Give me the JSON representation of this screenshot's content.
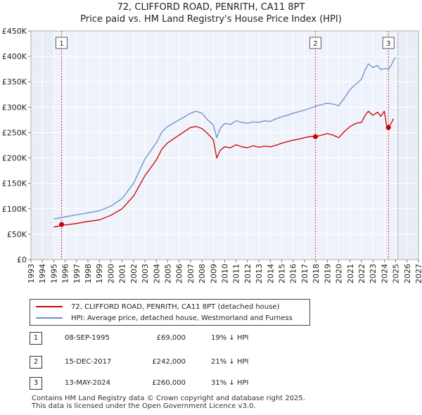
{
  "chart_data": {
    "type": "line",
    "title": "72, CLIFFORD ROAD, PENRITH, CA11 8PT",
    "subtitle": "Price paid vs. HM Land Registry's House Price Index (HPI)",
    "xlim": [
      1993,
      2027
    ],
    "ylim": [
      0,
      450000
    ],
    "xticks": [
      "1993",
      "1994",
      "1995",
      "1996",
      "1997",
      "1998",
      "1999",
      "2000",
      "2001",
      "2002",
      "2003",
      "2004",
      "2005",
      "2006",
      "2007",
      "2008",
      "2009",
      "2010",
      "2011",
      "2012",
      "2013",
      "2014",
      "2015",
      "2016",
      "2017",
      "2018",
      "2019",
      "2020",
      "2021",
      "2022",
      "2023",
      "2024",
      "2025",
      "2026",
      "2027"
    ],
    "yticks": [
      {
        "value": 0,
        "label": "£0"
      },
      {
        "value": 50000,
        "label": "£50K"
      },
      {
        "value": 100000,
        "label": "£100K"
      },
      {
        "value": 150000,
        "label": "£150K"
      },
      {
        "value": 200000,
        "label": "£200K"
      },
      {
        "value": 250000,
        "label": "£250K"
      },
      {
        "value": 300000,
        "label": "£300K"
      },
      {
        "value": 350000,
        "label": "£350K"
      },
      {
        "value": 400000,
        "label": "£400K"
      },
      {
        "value": 450000,
        "label": "£450K"
      }
    ],
    "grid": true,
    "hatched_ranges": [
      [
        1993,
        1995.0
      ],
      [
        2025.2,
        2027
      ]
    ],
    "series": [
      {
        "name": "72, CLIFFORD ROAD, PENRITH, CA11 8PT (detached house)",
        "color": "#cc0000",
        "x": [
          1995.0,
          1995.5,
          1995.69,
          1996.0,
          1997.0,
          1998.0,
          1999.0,
          2000.0,
          2001.0,
          2002.0,
          2003.0,
          2004.0,
          2004.5,
          2005.0,
          2006.0,
          2007.0,
          2007.5,
          2008.0,
          2008.5,
          2009.0,
          2009.3,
          2009.6,
          2010.0,
          2010.5,
          2011.0,
          2011.5,
          2012.0,
          2012.5,
          2013.0,
          2013.5,
          2014.0,
          2014.5,
          2015.0,
          2015.5,
          2016.0,
          2016.5,
          2017.0,
          2017.5,
          2017.96,
          2018.5,
          2019.0,
          2019.5,
          2020.0,
          2020.5,
          2021.0,
          2021.5,
          2022.0,
          2022.3,
          2022.6,
          2023.0,
          2023.4,
          2023.7,
          2024.0,
          2024.2,
          2024.36,
          2024.6,
          2024.8
        ],
        "values": [
          64000,
          66000,
          69000,
          68000,
          71000,
          75000,
          78000,
          87000,
          100000,
          125000,
          165000,
          196000,
          218000,
          230000,
          245000,
          260000,
          262000,
          258000,
          248000,
          236000,
          200000,
          215000,
          222000,
          220000,
          226000,
          222000,
          220000,
          224000,
          221000,
          223000,
          222000,
          225000,
          229000,
          232000,
          235000,
          237000,
          240000,
          242000,
          242000,
          245000,
          248000,
          245000,
          240000,
          252000,
          262000,
          268000,
          270000,
          283000,
          292000,
          284000,
          290000,
          282000,
          292000,
          265000,
          260000,
          268000,
          277000
        ]
      },
      {
        "name": "HPI: Average price, detached house, Westmorland and Furness",
        "color": "#6a8fcc",
        "x": [
          1995.0,
          1995.5,
          1996.0,
          1997.0,
          1998.0,
          1999.0,
          2000.0,
          2001.0,
          2002.0,
          2003.0,
          2004.0,
          2004.5,
          2005.0,
          2006.0,
          2007.0,
          2007.5,
          2008.0,
          2008.5,
          2009.0,
          2009.3,
          2009.6,
          2010.0,
          2010.5,
          2011.0,
          2011.5,
          2012.0,
          2012.5,
          2013.0,
          2013.5,
          2014.0,
          2014.5,
          2015.0,
          2015.5,
          2016.0,
          2016.5,
          2017.0,
          2017.5,
          2018.0,
          2018.5,
          2019.0,
          2019.5,
          2020.0,
          2020.5,
          2021.0,
          2021.5,
          2022.0,
          2022.3,
          2022.6,
          2023.0,
          2023.4,
          2023.7,
          2024.0,
          2024.36,
          2024.6,
          2024.8,
          2025.0
        ],
        "values": [
          80000,
          82000,
          84000,
          88000,
          92000,
          96000,
          105000,
          120000,
          150000,
          198000,
          230000,
          252000,
          262000,
          275000,
          288000,
          292000,
          288000,
          275000,
          265000,
          240000,
          258000,
          268000,
          266000,
          273000,
          270000,
          268000,
          271000,
          270000,
          273000,
          272000,
          277000,
          281000,
          284000,
          288000,
          291000,
          294000,
          298000,
          302000,
          305000,
          308000,
          306000,
          303000,
          318000,
          335000,
          345000,
          355000,
          372000,
          385000,
          378000,
          382000,
          374000,
          376000,
          375000,
          382000,
          392000,
          398000
        ]
      }
    ],
    "markers": [
      {
        "label": "1",
        "x": 1995.69,
        "value": 69000
      },
      {
        "label": "2",
        "x": 2017.96,
        "value": 242000
      },
      {
        "label": "3",
        "x": 2024.36,
        "value": 260000
      }
    ]
  },
  "legend": {
    "items": [
      {
        "label": "72, CLIFFORD ROAD, PENRITH, CA11 8PT (detached house)",
        "color": "#cc0000"
      },
      {
        "label": "HPI: Average price, detached house, Westmorland and Furness",
        "color": "#6a8fcc"
      }
    ]
  },
  "transactions": [
    {
      "badge": "1",
      "date": "08-SEP-1995",
      "price": "£69,000",
      "hpi": "19% ↓ HPI"
    },
    {
      "badge": "2",
      "date": "15-DEC-2017",
      "price": "£242,000",
      "hpi": "21% ↓ HPI"
    },
    {
      "badge": "3",
      "date": "13-MAY-2024",
      "price": "£260,000",
      "hpi": "31% ↓ HPI"
    }
  ],
  "footer": {
    "line1": "Contains HM Land Registry data © Crown copyright and database right 2025.",
    "line2": "This data is licensed under the Open Government Licence v3.0."
  }
}
